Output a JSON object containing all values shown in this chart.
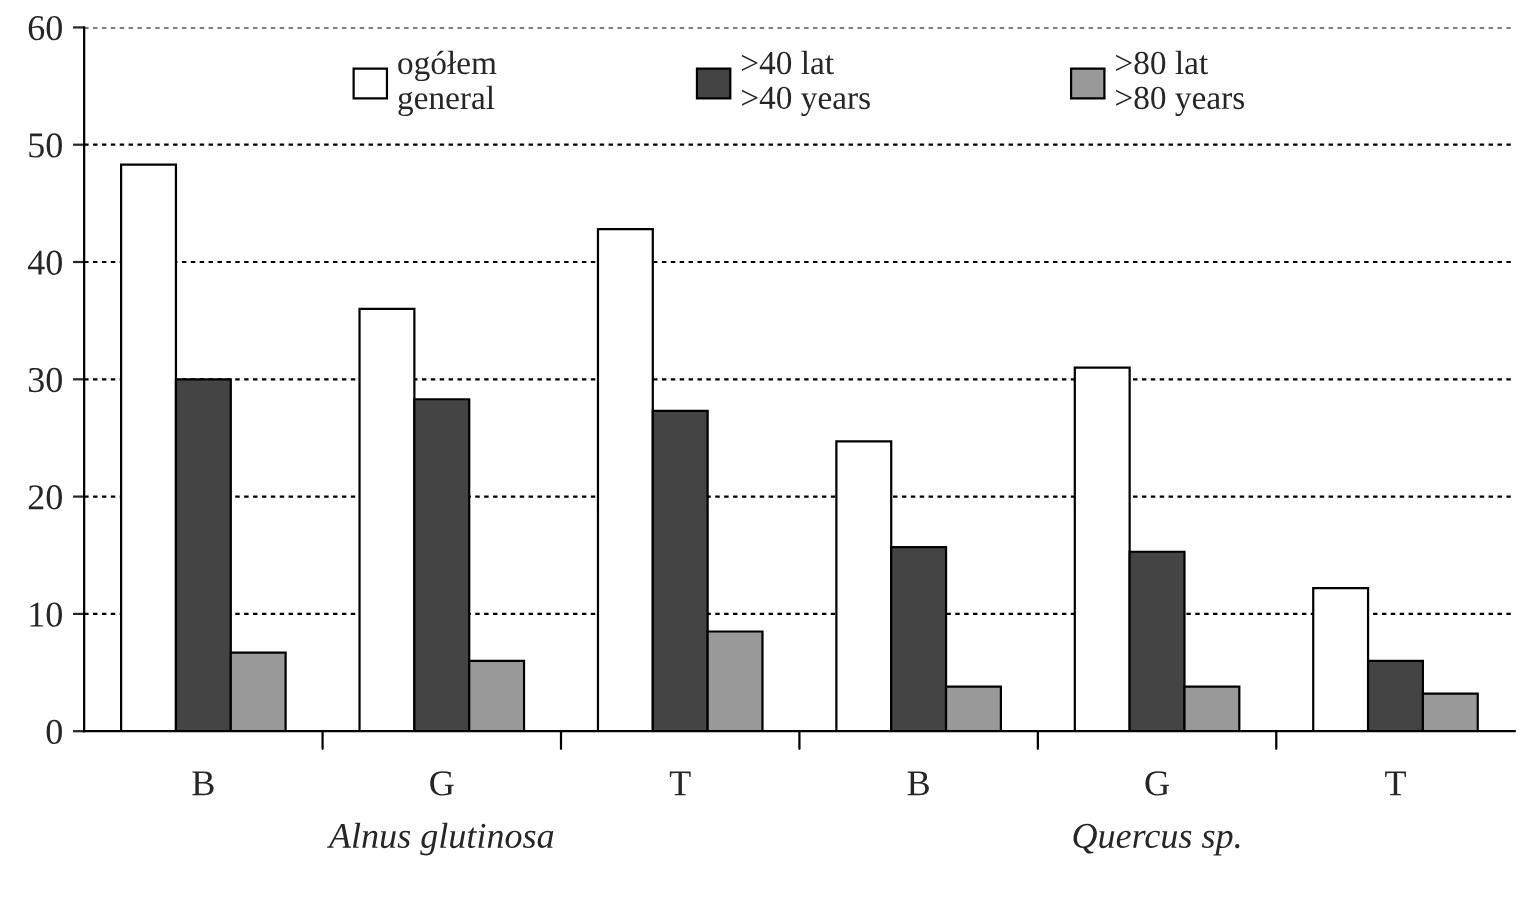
{
  "chart_data": {
    "type": "bar",
    "categories": [
      "B",
      "G",
      "T",
      "B",
      "G",
      "T"
    ],
    "series": [
      {
        "name": "ogółem\ngeneral",
        "color": "#ffffff",
        "values": [
          48.3,
          36,
          42.8,
          24.7,
          31,
          12.2
        ]
      },
      {
        "name": ">40 lat\n>40 years",
        "color": "#444444",
        "values": [
          30,
          28.3,
          27.3,
          15.7,
          15.3,
          6
        ]
      },
      {
        "name": ">80 lat\n>80 years",
        "color": "#999999",
        "values": [
          6.7,
          6,
          8.5,
          3.8,
          3.8,
          3.2
        ]
      }
    ],
    "ylim": [
      0,
      60
    ],
    "yticks": [
      0,
      10,
      20,
      30,
      40,
      50,
      60
    ],
    "grid": "y",
    "legend": "top",
    "annotations": [
      "Alnus glutinosa",
      "Quercus sp."
    ]
  }
}
